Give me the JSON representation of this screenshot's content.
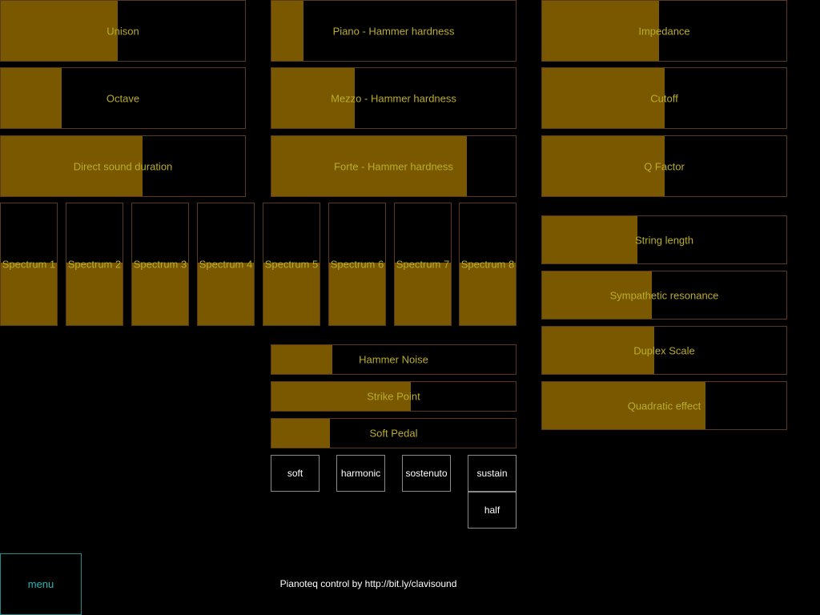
{
  "colors": {
    "background": "#000000",
    "fill": "#7a5800",
    "border": "#5b3a1c",
    "label": "#b9ad2a",
    "menu": "#25b7b7"
  },
  "faders": {
    "unison": {
      "label": "Unison",
      "value": 0.48
    },
    "octave": {
      "label": "Octave",
      "value": 0.25
    },
    "direct_sound_duration": {
      "label": "Direct sound duration",
      "value": 0.58
    },
    "piano_hammer_hardness": {
      "label": "Piano - Hammer hardness",
      "value": 0.13
    },
    "mezzo_hammer_hardness": {
      "label": "Mezzo - Hammer hardness",
      "value": 0.34
    },
    "forte_hammer_hardness": {
      "label": "Forte - Hammer hardness",
      "value": 0.8
    },
    "impedance": {
      "label": "Impedance",
      "value": 0.48
    },
    "cutoff": {
      "label": "Cutoff",
      "value": 0.5
    },
    "q_factor": {
      "label": "Q Factor",
      "value": 0.5
    },
    "string_length": {
      "label": "String length",
      "value": 0.39
    },
    "sympathetic_resonance": {
      "label": "Sympathetic resonance",
      "value": 0.45
    },
    "duplex_scale": {
      "label": "Duplex Scale",
      "value": 0.46
    },
    "quadratic_effect": {
      "label": "Quadratic effect",
      "value": 0.67
    },
    "hammer_noise": {
      "label": "Hammer Noise",
      "value": 0.25
    },
    "strike_point": {
      "label": "Strike Point",
      "value": 0.57
    },
    "soft_pedal": {
      "label": "Soft Pedal",
      "value": 0.24
    }
  },
  "spectrum": [
    {
      "label": "Spectrum 1",
      "value": 0.51
    },
    {
      "label": "Spectrum 2",
      "value": 0.51
    },
    {
      "label": "Spectrum 3",
      "value": 0.51
    },
    {
      "label": "Spectrum 4",
      "value": 0.51
    },
    {
      "label": "Spectrum 5",
      "value": 0.51
    },
    {
      "label": "Spectrum 6",
      "value": 0.51
    },
    {
      "label": "Spectrum 7",
      "value": 0.51
    },
    {
      "label": "Spectrum 8",
      "value": 0.51
    }
  ],
  "pedals": {
    "soft": "soft",
    "harmonic": "harmonic",
    "sostenuto": "sostenuto",
    "sustain": "sustain",
    "half": "half"
  },
  "menu_label": "menu",
  "footer_text": "Pianoteq control by http://bit.ly/clavisound"
}
